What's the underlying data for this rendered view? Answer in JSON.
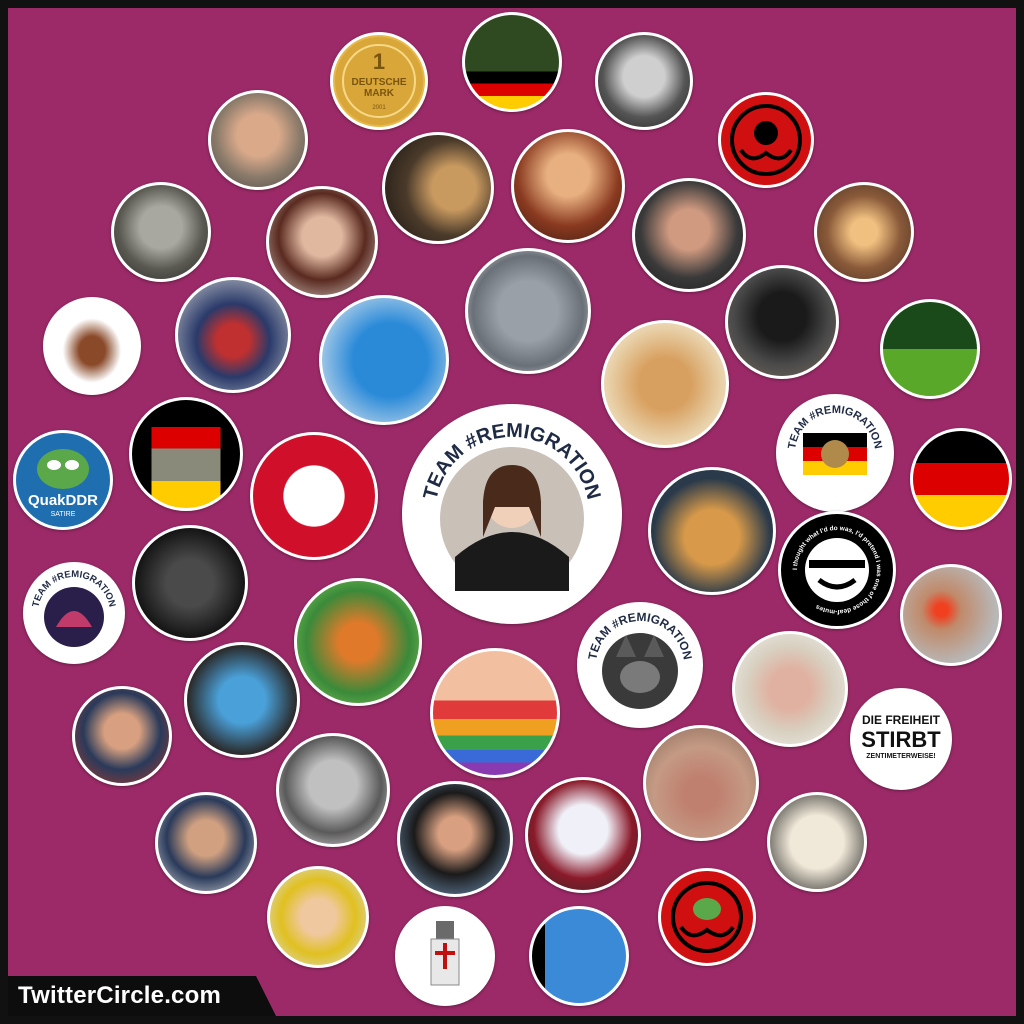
{
  "branding": {
    "label": "TwitterCircle.com"
  },
  "colors": {
    "background": "#9c2a68",
    "frame": "#111111",
    "avatar_border": "#ffffff"
  },
  "avatars": {
    "center": {
      "ring_text": "TEAM #REMIGRATION",
      "icon": "anime-girl-avatar"
    },
    "coin": {
      "line1": "1",
      "line2": "DEUTSCHE",
      "line3": "MARK",
      "line4": "2001"
    },
    "quakddr": {
      "line1": "QuakDDR",
      "line2": "SATIRE"
    },
    "remigration_eagle": {
      "ring_text": "TEAM #REMIGRATION"
    },
    "remigration_wolf": {
      "ring_text": "TEAM #REMIGRATION"
    },
    "remigration_ring": {
      "ring_text": "TEAM #REMIGRATION"
    },
    "freiheit": {
      "line1": "DIE FREIHEIT",
      "line2": "STIRBT",
      "line3": "ZENTIMETERWEISE!"
    },
    "laughing_man": {
      "ring_text": "I thought what I'd do was, I'd pretend I was one of those deaf-mutes"
    }
  }
}
